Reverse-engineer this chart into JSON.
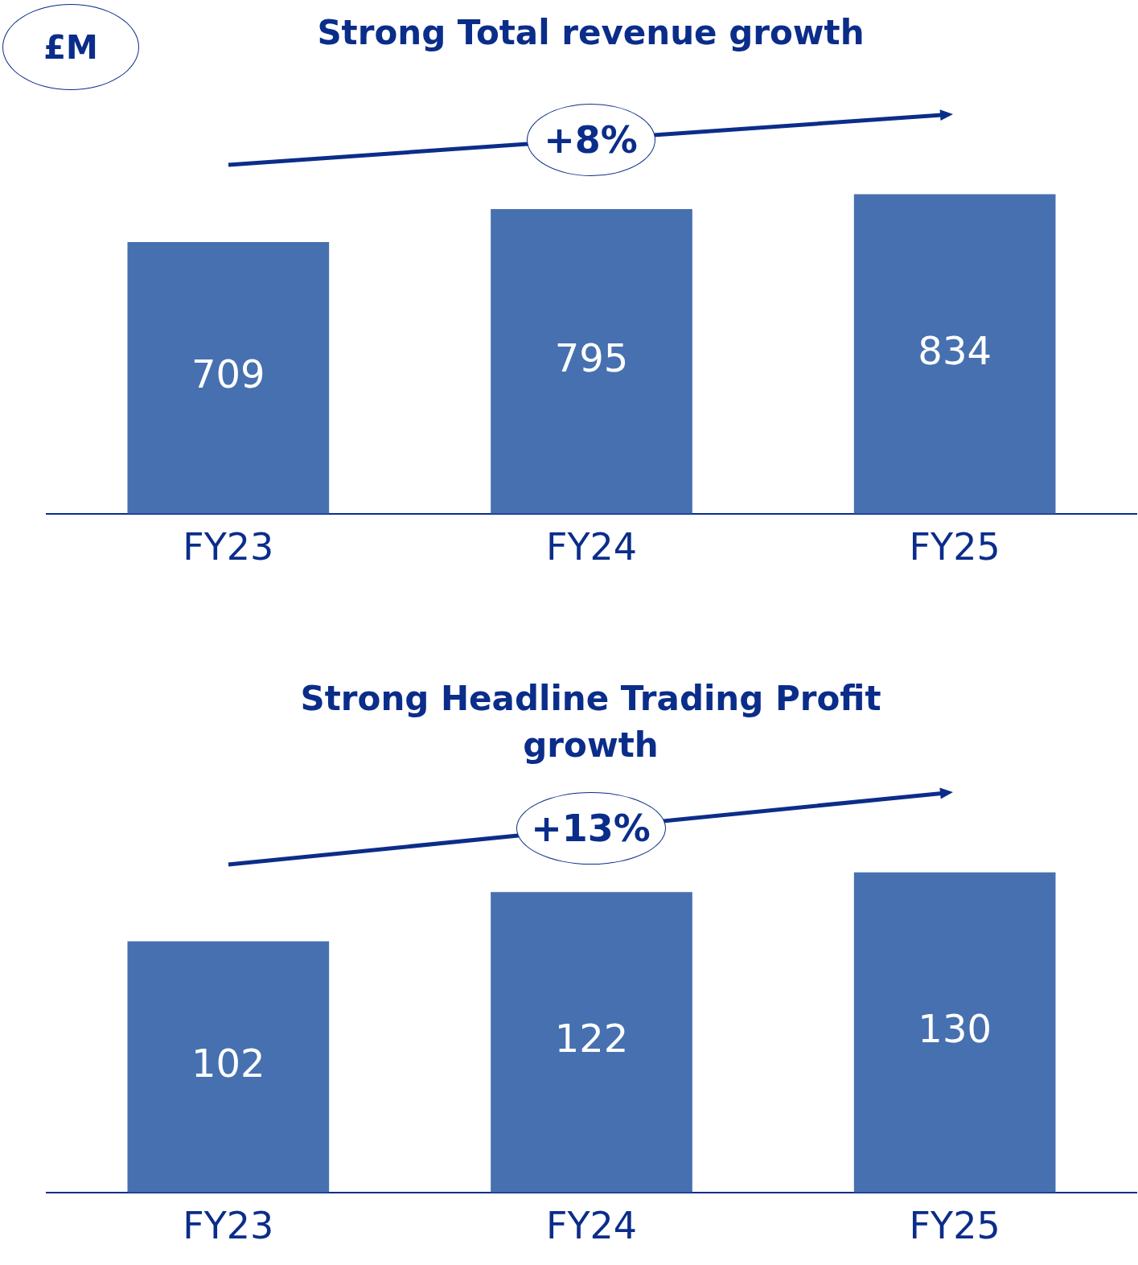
{
  "chart_data": [
    {
      "type": "bar",
      "title": "Strong Total revenue growth",
      "categories": [
        "FY23",
        "FY24",
        "FY25"
      ],
      "values": [
        709,
        795,
        834
      ],
      "color": "#4670b0",
      "data_labels": true,
      "grid": false,
      "legend": false,
      "annotations": [
        "£M",
        "+8%"
      ]
    },
    {
      "type": "bar",
      "title": "Strong Headline Trading Profit growth",
      "categories": [
        "FY23",
        "FY24",
        "FY25"
      ],
      "values": [
        102,
        122,
        130
      ],
      "color": "#4670b0",
      "data_labels": true,
      "grid": false,
      "legend": false,
      "annotations": [
        "+13%"
      ]
    }
  ]
}
